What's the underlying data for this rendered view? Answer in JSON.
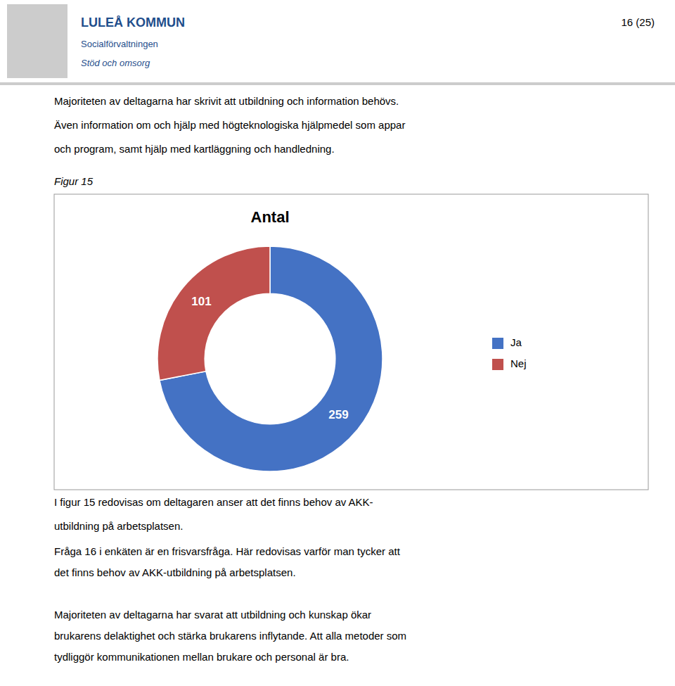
{
  "page": {
    "header_title": "LULEÅ KOMMUN",
    "header_subtitle": "Socialförvaltningen",
    "header_unit": "Stöd och omsorg",
    "page_number": "16 (25)",
    "body_text": [
      "Majoriteten av deltagarna har skrivit att utbildning och information behövs.",
      "Även information om och hjälp med högteknologiska hjälpmedel som appar",
      "och program, samt hjälp med kartläggning och handledning."
    ],
    "figure_label": "Figur 15",
    "caption_text": [
      "I figur 15 redovisas om deltagaren anser att det finns behov av AKK-",
      "utbildning på arbetsplatsen."
    ],
    "footer_text": [
      "Fråga 16 i enkäten är en frisvarsfråga. Här redovisas varför man tycker att",
      "det finns behov av AKK-utbildning på arbetsplatsen.",
      "Majoriteten av deltagarna har svarat att utbildning och kunskap ökar",
      "brukarens delaktighet och stärka brukarens inflytande. Att alla metoder som",
      "tydliggör kommunikationen mellan brukare och personal är bra."
    ]
  },
  "chart_data": {
    "type": "donut",
    "title": "Antal",
    "categories": [
      "Ja",
      "Nej"
    ],
    "values": [
      259,
      101
    ],
    "colors": [
      "#4472C4",
      "#C0504D"
    ],
    "legend": "right",
    "data_labels": true
  }
}
